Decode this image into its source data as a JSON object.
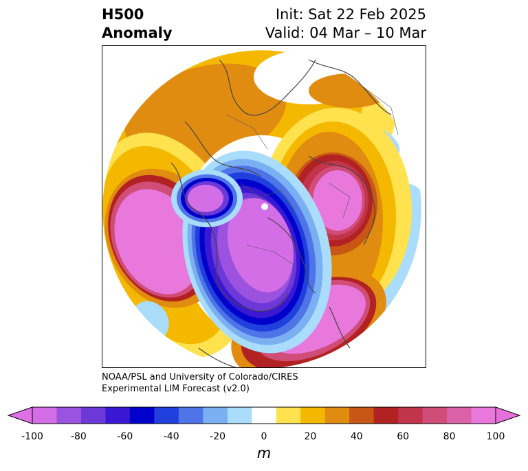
{
  "title": {
    "line1": "H500",
    "line2": "Anomaly"
  },
  "dates": {
    "init": "Init: Sat 22 Feb 2025",
    "valid": "Valid: 04 Mar – 10 Mar"
  },
  "credit": {
    "line1": "NOAA/PSL and University of Colorado/CIRES",
    "line2": "Experimental LIM Forecast (v2.0)"
  },
  "colorbar": {
    "units": "m",
    "ticks": [
      "-100",
      "-80",
      "-60",
      "-40",
      "-20",
      "0",
      "20",
      "40",
      "60",
      "80",
      "100"
    ],
    "levels": [
      -100,
      -90,
      -80,
      -70,
      -60,
      -50,
      -40,
      -30,
      -20,
      -10,
      10,
      20,
      30,
      40,
      50,
      60,
      70,
      80,
      90,
      100
    ],
    "colors": [
      "#d36ee6",
      "#9b52de",
      "#6c38d8",
      "#3a18d3",
      "#0000cc",
      "#2040dd",
      "#4f74e8",
      "#7ab0f2",
      "#aadcfc",
      "#ffffff",
      "#ffe24d",
      "#f5b800",
      "#e08c10",
      "#c85614",
      "#b22222",
      "#c2344a",
      "#d04d78",
      "#dc62a8",
      "#e878dc"
    ],
    "extend_min_color": "#e070e8",
    "extend_max_color": "#e870dc"
  }
}
